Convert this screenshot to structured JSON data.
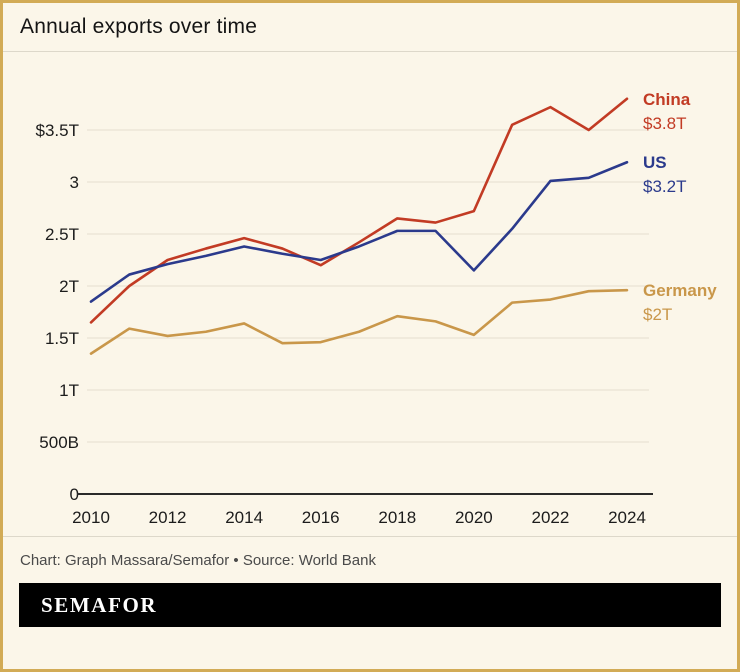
{
  "title": "Annual exports over time",
  "footer": {
    "credit": "Chart: Graph Massara/Semafor • Source: World Bank"
  },
  "brand": {
    "wordmark": "SEMAFOR"
  },
  "colors": {
    "background": "#fbf6e9",
    "frame_border": "#d2ab56",
    "grid": "#e4dfd0",
    "axis": "#2a2a2a",
    "tick_text": "#1c1c1c",
    "credit_text": "#4a4a4a",
    "brand_bar": "#000000"
  },
  "chart_data": {
    "type": "line",
    "title": "Annual exports over time",
    "unit": "USD (T = trillion, B = billion)",
    "x": [
      2010,
      2011,
      2012,
      2013,
      2014,
      2015,
      2016,
      2017,
      2018,
      2019,
      2020,
      2021,
      2022,
      2023,
      2024
    ],
    "x_tick_labels": [
      "2010",
      "2012",
      "2014",
      "2016",
      "2018",
      "2020",
      "2022",
      "2024"
    ],
    "y_ticks": [
      0,
      0.5,
      1,
      1.5,
      2,
      2.5,
      3,
      3.5
    ],
    "y_tick_labels": [
      "0",
      "500B",
      "1T",
      "1.5T",
      "2T",
      "2.5T",
      "3",
      "$3.5T"
    ],
    "ylim": [
      0,
      3.95
    ],
    "grid": true,
    "legend_position": "right-end-labels",
    "series": [
      {
        "name": "China",
        "color": "#c23b24",
        "end_label": "$3.8T",
        "values": [
          1.65,
          2.0,
          2.25,
          2.36,
          2.46,
          2.36,
          2.2,
          2.42,
          2.65,
          2.61,
          2.72,
          3.55,
          3.72,
          3.5,
          3.8
        ]
      },
      {
        "name": "US",
        "color": "#2b3a8c",
        "end_label": "$3.2T",
        "values": [
          1.85,
          2.11,
          2.21,
          2.29,
          2.38,
          2.31,
          2.25,
          2.38,
          2.53,
          2.53,
          2.15,
          2.55,
          3.01,
          3.04,
          3.19
        ]
      },
      {
        "name": "Germany",
        "color": "#c9974a",
        "end_label": "$2T",
        "values": [
          1.35,
          1.59,
          1.52,
          1.56,
          1.64,
          1.45,
          1.46,
          1.56,
          1.71,
          1.66,
          1.53,
          1.84,
          1.87,
          1.95,
          1.96
        ]
      }
    ]
  }
}
